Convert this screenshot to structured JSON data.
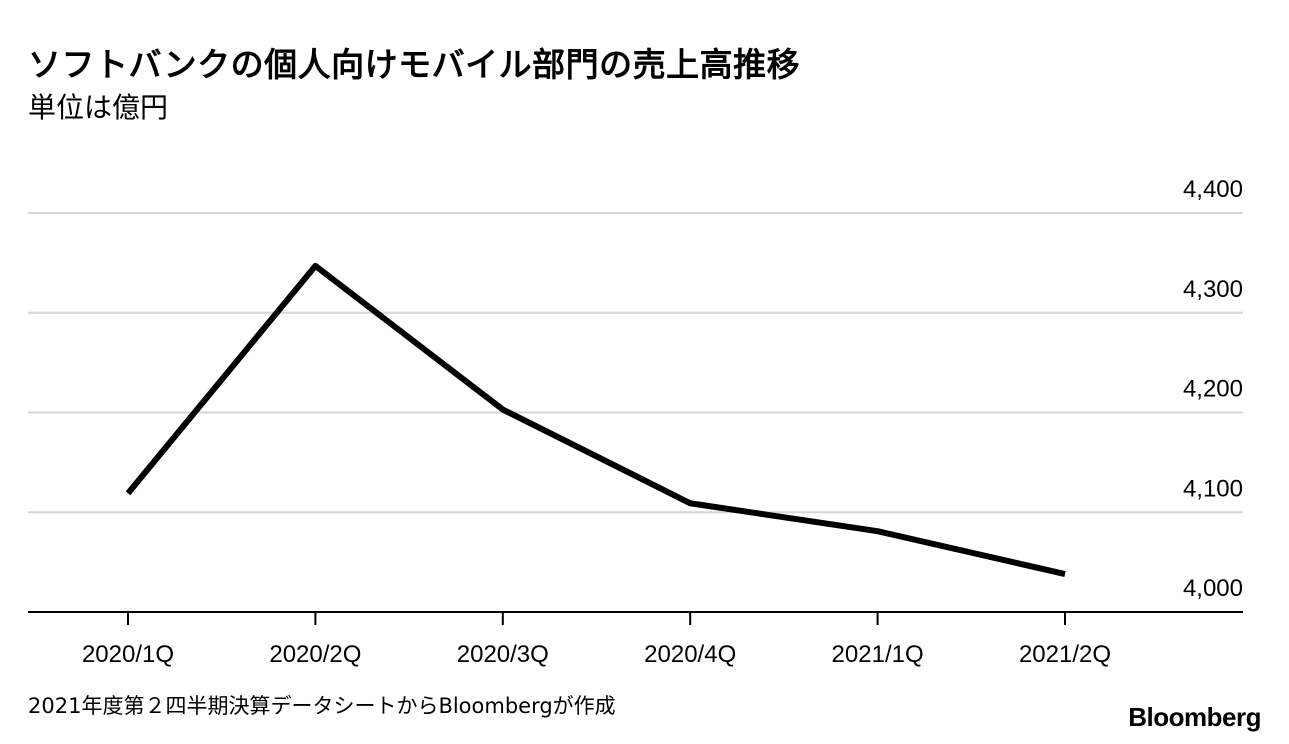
{
  "header": {
    "title": "ソフトバンクの個人向けモバイル部門の売上高推移",
    "subtitle": "単位は億円"
  },
  "footer": {
    "source": "2021年度第２四半期決算データシートからBloombergが作成",
    "logo": "Bloomberg"
  },
  "colors": {
    "line": "#000000",
    "grid": "#d6d6d6",
    "axis": "#000000"
  },
  "chart_data": {
    "type": "line",
    "title": "ソフトバンクの個人向けモバイル部門の売上高推移",
    "subtitle": "単位は億円",
    "xlabel": "",
    "ylabel": "",
    "categories": [
      "2020/1Q",
      "2020/2Q",
      "2020/3Q",
      "2020/4Q",
      "2021/1Q",
      "2021/2Q"
    ],
    "series": [
      {
        "values": [
          4119,
          4347,
          4203,
          4109,
          4081,
          4038
        ]
      }
    ],
    "ylim": [
      4000,
      4400
    ],
    "yticks": [
      4000,
      4100,
      4200,
      4300,
      4400
    ],
    "ytick_labels": [
      "4,000",
      "4,100",
      "4,200",
      "4,300",
      "4,400"
    ],
    "y_axis_side": "right",
    "grid": true,
    "legend": "none"
  }
}
